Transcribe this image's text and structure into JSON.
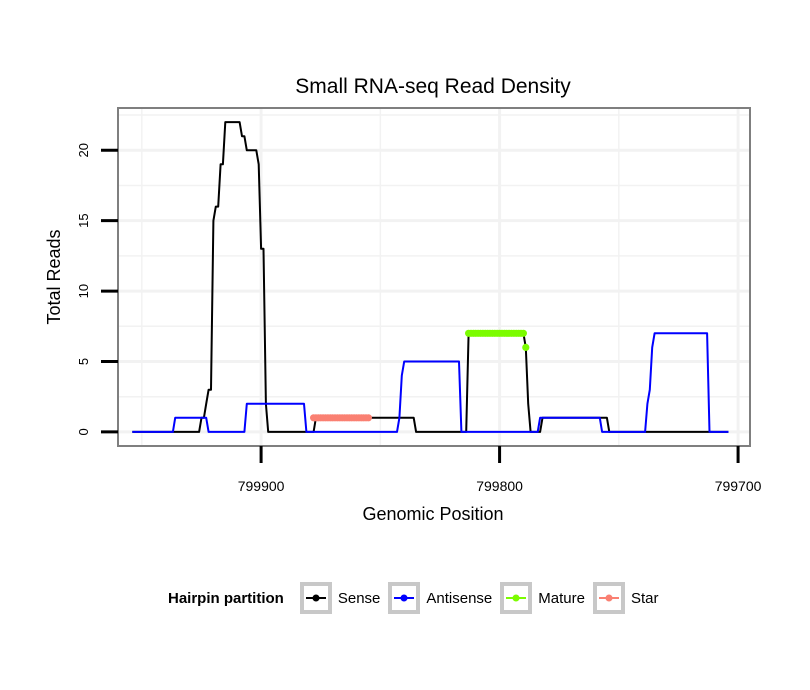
{
  "chart_data": {
    "type": "line",
    "title": "Small RNA-seq Read Density",
    "xlabel": "Genomic Position",
    "ylabel": "Total Reads",
    "xlim": [
      799960,
      799695
    ],
    "ylim": [
      -1,
      23
    ],
    "x_ticks": [
      799900,
      799800,
      799700
    ],
    "x_tick_labels": [
      "799900",
      "799800",
      "799700"
    ],
    "y_ticks": [
      0,
      5,
      10,
      15,
      20
    ],
    "y_tick_labels": [
      "0",
      "5",
      "10",
      "15",
      "20"
    ],
    "series": [
      {
        "name": "Sense",
        "color": "#000000",
        "style": "line",
        "points": [
          [
            799954,
            0
          ],
          [
            799926,
            0
          ],
          [
            799925,
            1
          ],
          [
            799924,
            1
          ],
          [
            799923,
            2
          ],
          [
            799922,
            3
          ],
          [
            799921,
            3
          ],
          [
            799920,
            15
          ],
          [
            799919,
            16
          ],
          [
            799918,
            16
          ],
          [
            799917,
            19
          ],
          [
            799916,
            19
          ],
          [
            799915,
            22
          ],
          [
            799909,
            22
          ],
          [
            799908,
            21
          ],
          [
            799907,
            21
          ],
          [
            799906,
            20
          ],
          [
            799902,
            20
          ],
          [
            799901,
            19
          ],
          [
            799900,
            13
          ],
          [
            799899,
            13
          ],
          [
            799898,
            2
          ],
          [
            799897,
            0
          ],
          [
            799878,
            0
          ],
          [
            799877,
            1
          ],
          [
            799836,
            1
          ],
          [
            799835,
            0
          ],
          [
            799814,
            0
          ],
          [
            799813,
            7
          ],
          [
            799790,
            7
          ],
          [
            799789,
            6
          ],
          [
            799788,
            2
          ],
          [
            799787,
            0
          ],
          [
            799783,
            0
          ],
          [
            799782,
            1
          ],
          [
            799755,
            1
          ],
          [
            799754,
            0
          ],
          [
            799704,
            0
          ]
        ]
      },
      {
        "name": "Antisense",
        "color": "#0000ff",
        "style": "line",
        "points": [
          [
            799954,
            0
          ],
          [
            799937,
            0
          ],
          [
            799936,
            1
          ],
          [
            799923,
            1
          ],
          [
            799922,
            0
          ],
          [
            799907,
            0
          ],
          [
            799906,
            2
          ],
          [
            799882,
            2
          ],
          [
            799881,
            0
          ],
          [
            799843,
            0
          ],
          [
            799842,
            1
          ],
          [
            799841,
            4
          ],
          [
            799840,
            5
          ],
          [
            799817,
            5
          ],
          [
            799816,
            0
          ],
          [
            799784,
            0
          ],
          [
            799783,
            1
          ],
          [
            799758,
            1
          ],
          [
            799757,
            0
          ],
          [
            799739,
            0
          ],
          [
            799738,
            2
          ],
          [
            799737,
            3
          ],
          [
            799736,
            6
          ],
          [
            799735,
            7
          ],
          [
            799713,
            7
          ],
          [
            799712,
            0
          ],
          [
            799704,
            0
          ]
        ]
      },
      {
        "name": "Mature",
        "color": "#7cfc00",
        "style": "points",
        "points": [
          [
            799813,
            7
          ],
          [
            799812,
            7
          ],
          [
            799811,
            7
          ],
          [
            799810,
            7
          ],
          [
            799809,
            7
          ],
          [
            799808,
            7
          ],
          [
            799807,
            7
          ],
          [
            799806,
            7
          ],
          [
            799805,
            7
          ],
          [
            799804,
            7
          ],
          [
            799803,
            7
          ],
          [
            799802,
            7
          ],
          [
            799801,
            7
          ],
          [
            799800,
            7
          ],
          [
            799799,
            7
          ],
          [
            799798,
            7
          ],
          [
            799797,
            7
          ],
          [
            799796,
            7
          ],
          [
            799795,
            7
          ],
          [
            799794,
            7
          ],
          [
            799793,
            7
          ],
          [
            799792,
            7
          ],
          [
            799791,
            7
          ],
          [
            799790,
            7
          ],
          [
            799789,
            6
          ]
        ]
      },
      {
        "name": "Star",
        "color": "#fa8072",
        "style": "points",
        "points": [
          [
            799878,
            1
          ],
          [
            799877,
            1
          ],
          [
            799876,
            1
          ],
          [
            799875,
            1
          ],
          [
            799874,
            1
          ],
          [
            799873,
            1
          ],
          [
            799872,
            1
          ],
          [
            799871,
            1
          ],
          [
            799870,
            1
          ],
          [
            799869,
            1
          ],
          [
            799868,
            1
          ],
          [
            799867,
            1
          ],
          [
            799866,
            1
          ],
          [
            799865,
            1
          ],
          [
            799864,
            1
          ],
          [
            799863,
            1
          ],
          [
            799862,
            1
          ],
          [
            799861,
            1
          ],
          [
            799860,
            1
          ],
          [
            799859,
            1
          ],
          [
            799858,
            1
          ],
          [
            799857,
            1
          ],
          [
            799856,
            1
          ],
          [
            799855,
            1
          ]
        ]
      }
    ],
    "legend": {
      "title": "Hairpin partition",
      "position": "bottom",
      "items": [
        "Sense",
        "Antisense",
        "Mature",
        "Star"
      ]
    },
    "grid": true
  }
}
